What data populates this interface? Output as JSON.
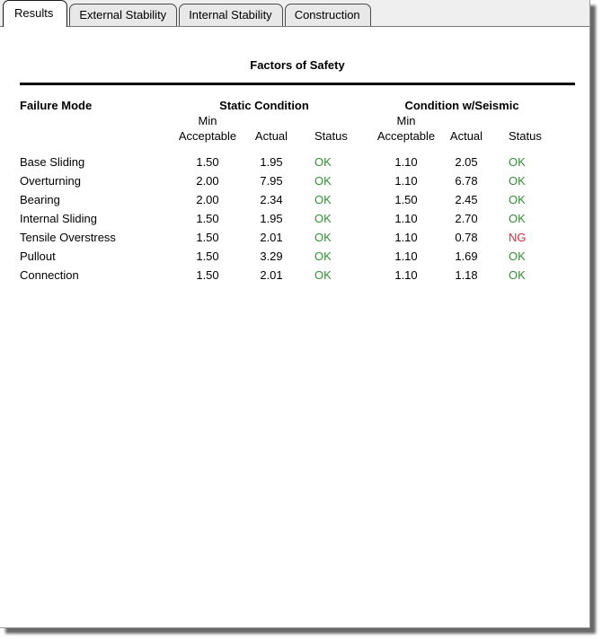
{
  "tabs": [
    {
      "label": "Results",
      "active": true
    },
    {
      "label": "External Stability",
      "active": false
    },
    {
      "label": "Internal Stability",
      "active": false
    },
    {
      "label": "Construction",
      "active": false
    }
  ],
  "report": {
    "title": "Factors of Safety",
    "headers": {
      "failure_mode": "Failure Mode",
      "static_group": "Static Condition",
      "seismic_group": "Condition w/Seismic",
      "min": "Min",
      "acceptable": "Acceptable",
      "actual": "Actual",
      "status": "Status"
    },
    "rows": [
      {
        "mode": "Base Sliding",
        "s_min": "1.50",
        "s_act": "1.95",
        "s_status": "OK",
        "w_min": "1.10",
        "w_act": "2.05",
        "w_status": "OK"
      },
      {
        "mode": "Overturning",
        "s_min": "2.00",
        "s_act": "7.95",
        "s_status": "OK",
        "w_min": "1.10",
        "w_act": "6.78",
        "w_status": "OK"
      },
      {
        "mode": "Bearing",
        "s_min": "2.00",
        "s_act": "2.34",
        "s_status": "OK",
        "w_min": "1.50",
        "w_act": "2.45",
        "w_status": "OK"
      },
      {
        "mode": "Internal Sliding",
        "s_min": "1.50",
        "s_act": "1.95",
        "s_status": "OK",
        "w_min": "1.10",
        "w_act": "2.70",
        "w_status": "OK"
      },
      {
        "mode": "Tensile Overstress",
        "s_min": "1.50",
        "s_act": "2.01",
        "s_status": "OK",
        "w_min": "1.10",
        "w_act": "0.78",
        "w_status": "NG"
      },
      {
        "mode": "Pullout",
        "s_min": "1.50",
        "s_act": "3.29",
        "s_status": "OK",
        "w_min": "1.10",
        "w_act": "1.69",
        "w_status": "OK"
      },
      {
        "mode": "Connection",
        "s_min": "1.50",
        "s_act": "2.01",
        "s_status": "OK",
        "w_min": "1.10",
        "w_act": "1.18",
        "w_status": "OK"
      }
    ]
  },
  "colors": {
    "status_ok": "#2E9330",
    "status_ng": "#DC2838"
  }
}
